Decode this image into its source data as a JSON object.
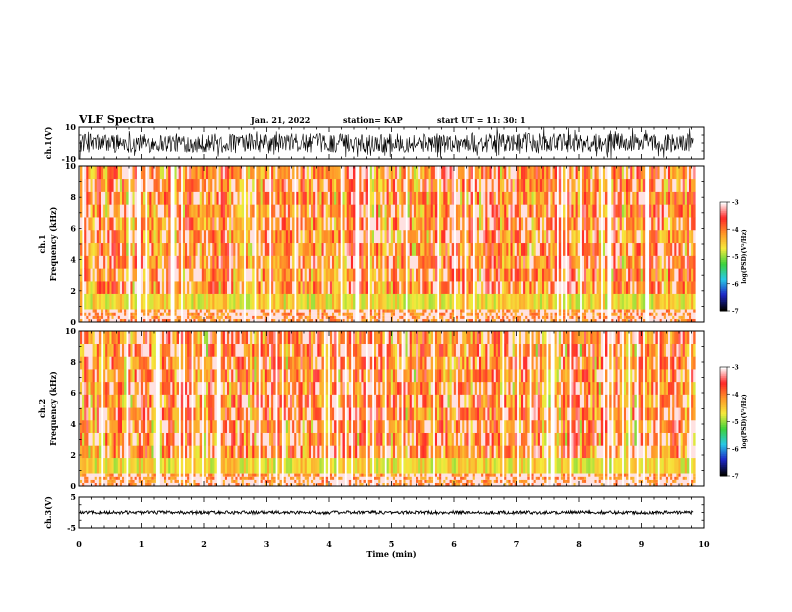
{
  "header": {
    "title": "VLF Spectra",
    "date": "Jan. 21, 2022",
    "station": "station= KAP",
    "start": "start  UT  =   11: 30: 1"
  },
  "chart_data": [
    {
      "type": "line",
      "panel": "waveform-ch1",
      "ylabel": "ch.1(V)",
      "ylim": [
        -10,
        10
      ],
      "yticks": [
        "10",
        "-10"
      ],
      "xlim": [
        0,
        10
      ],
      "data_end": 9.83,
      "color": "#000000"
    },
    {
      "type": "heatmap",
      "panel": "spectrogram-ch1",
      "ylabel": "ch.1\nFrequency (kHz)",
      "ylabel_lines": [
        "ch.1",
        "Frequency  (kHz)"
      ],
      "ylim": [
        0,
        10
      ],
      "yticks": [
        "0",
        "2",
        "4",
        "6",
        "8",
        "10"
      ],
      "xlim": [
        0,
        10
      ],
      "data_end": 9.83,
      "colorbar": {
        "label": "log(PSD)(V²/Hz)",
        "range": [
          -7,
          -3
        ],
        "ticks": [
          "-3",
          "-4",
          "-5",
          "-6",
          "-7"
        ]
      }
    },
    {
      "type": "heatmap",
      "panel": "spectrogram-ch2",
      "ylabel_lines": [
        "ch.2",
        "Frequency  (kHz)"
      ],
      "ylim": [
        0,
        10
      ],
      "yticks": [
        "0",
        "2",
        "4",
        "6",
        "8",
        "10"
      ],
      "xlim": [
        0,
        10
      ],
      "data_end": 9.83,
      "colorbar": {
        "label": "log(PSD)(V²/Hz)",
        "range": [
          -7,
          -3
        ],
        "ticks": [
          "-3",
          "-4",
          "-5",
          "-6",
          "-7"
        ]
      }
    },
    {
      "type": "line",
      "panel": "waveform-ch3",
      "ylabel": "ch.3(V)",
      "ylim": [
        -5,
        5
      ],
      "yticks": [
        "5",
        "-5"
      ],
      "xlim": [
        0,
        10
      ],
      "data_end": 9.83,
      "xlabel": "Time  (min)",
      "xticks": [
        "0",
        "1",
        "2",
        "3",
        "4",
        "5",
        "6",
        "7",
        "8",
        "9",
        "10"
      ],
      "color": "#000000"
    }
  ]
}
